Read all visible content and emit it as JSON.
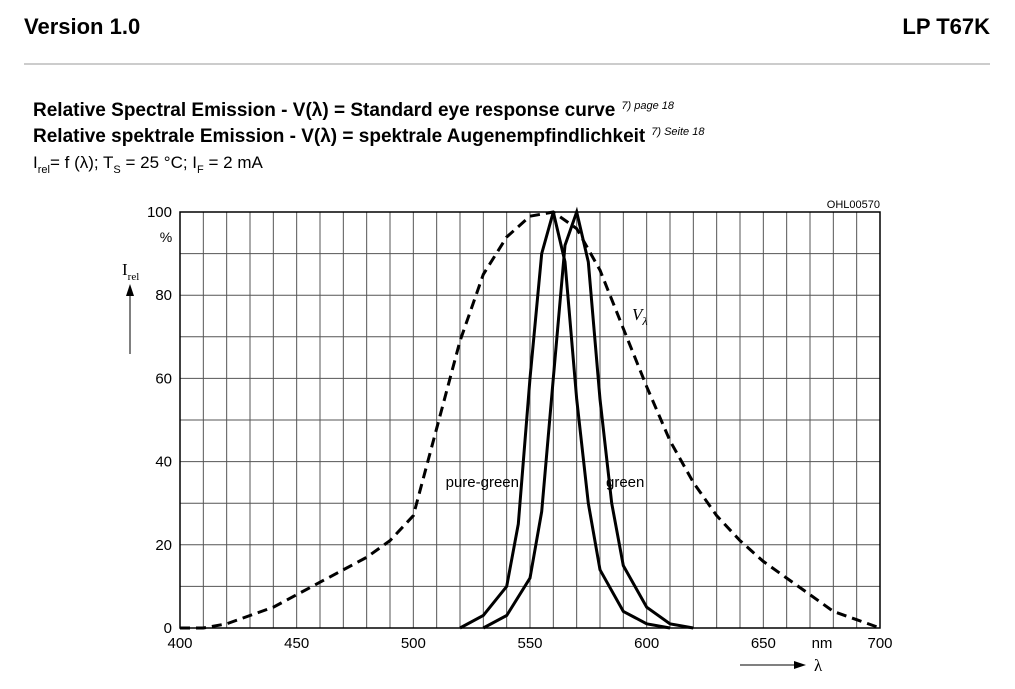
{
  "header": {
    "left": "Version 1.0",
    "right": "LP T67K"
  },
  "chart_data": {
    "type": "line",
    "title": "Relative Spectral Emission - V(λ) = Standard eye response curve",
    "title_note": "7) page 18",
    "title_de": "Relative spektrale Emission - V(λ) = spektrale Augenempfindlichkeit",
    "title_de_note": "7) Seite 18",
    "conditions": [
      {
        "t": "I"
      },
      {
        "s": "rel"
      },
      {
        "t": "= f (λ); T"
      },
      {
        "s": "S"
      },
      {
        "t": " = 25 °C; I"
      },
      {
        "s": "F"
      },
      {
        "t": " = 2 mA"
      }
    ],
    "code": "OHL00570",
    "y_label": {
      "t": "I",
      "s": "rel"
    },
    "y_unit": "%",
    "x_unit": "nm",
    "x_label": "λ",
    "xlim": [
      400,
      700
    ],
    "ylim": [
      0,
      100
    ],
    "xticks": [
      400,
      450,
      500,
      550,
      600,
      650,
      700
    ],
    "yticks": [
      0,
      20,
      40,
      60,
      80,
      100
    ],
    "x_grid": [
      400,
      410,
      420,
      430,
      440,
      450,
      460,
      470,
      480,
      490,
      500,
      510,
      520,
      530,
      540,
      550,
      560,
      570,
      580,
      590,
      600,
      610,
      620,
      630,
      640,
      650,
      660,
      670,
      680,
      690,
      700
    ],
    "y_grid": [
      0,
      10,
      20,
      30,
      40,
      50,
      60,
      70,
      80,
      90,
      100
    ],
    "grid": true,
    "series": [
      {
        "name": "Vλ",
        "label_main": "V",
        "label_sub": "λ",
        "color": "#000000",
        "dashed": true,
        "x": [
          400,
          410,
          420,
          430,
          440,
          450,
          460,
          470,
          480,
          490,
          500,
          510,
          520,
          530,
          540,
          550,
          560,
          570,
          580,
          590,
          600,
          610,
          620,
          630,
          640,
          650,
          660,
          670,
          680,
          690,
          700
        ],
        "values": [
          0,
          0,
          1,
          3,
          5,
          8,
          11,
          14,
          17,
          21,
          27,
          48,
          69,
          85,
          94,
          99,
          100,
          96,
          86,
          72,
          58,
          45,
          35,
          27,
          21,
          16,
          12,
          8,
          4,
          2,
          0
        ]
      },
      {
        "name": "pure-green",
        "color": "#000000",
        "dashed": false,
        "x": [
          520,
          530,
          540,
          545,
          550,
          555,
          560,
          565,
          570,
          575,
          580,
          590,
          600,
          610
        ],
        "values": [
          0,
          3,
          10,
          25,
          60,
          90,
          100,
          88,
          55,
          30,
          14,
          4,
          1,
          0
        ]
      },
      {
        "name": "green",
        "color": "#000000",
        "dashed": false,
        "x": [
          530,
          540,
          550,
          555,
          560,
          565,
          570,
          575,
          580,
          585,
          590,
          600,
          610,
          620
        ],
        "values": [
          0,
          3,
          12,
          28,
          60,
          92,
          100,
          88,
          55,
          30,
          15,
          5,
          1,
          0
        ]
      }
    ]
  }
}
